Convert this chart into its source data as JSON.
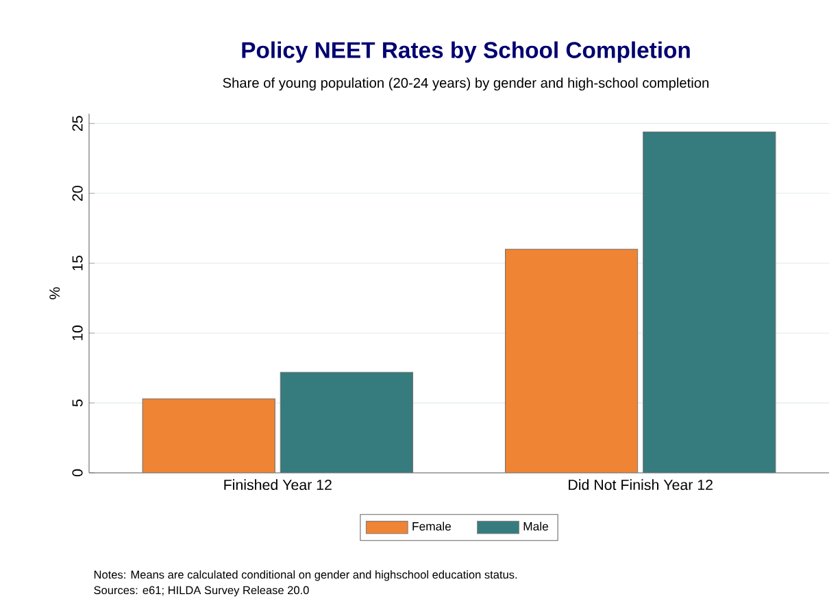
{
  "chart_data": {
    "type": "bar",
    "title": "Policy NEET Rates by School Completion",
    "subtitle": "Share of young population (20-24 years) by gender and high-school completion",
    "ylabel": "%",
    "categories": [
      "Finished Year 12",
      "Did Not Finish Year 12"
    ],
    "series": [
      {
        "name": "Female",
        "color": "#ee8434",
        "values": [
          5.3,
          16.0
        ]
      },
      {
        "name": "Male",
        "color": "#367b7d",
        "values": [
          7.2,
          24.4
        ]
      }
    ],
    "ylim": [
      0,
      25.7
    ],
    "yticks": [
      0,
      5,
      10,
      15,
      20,
      25
    ],
    "grid": "y",
    "legend": "bottom",
    "annotations": [
      "Notes: Means are calculated conditional on gender and highschool education status.",
      "Sources: e61; HILDA Survey Release 20.0"
    ]
  }
}
